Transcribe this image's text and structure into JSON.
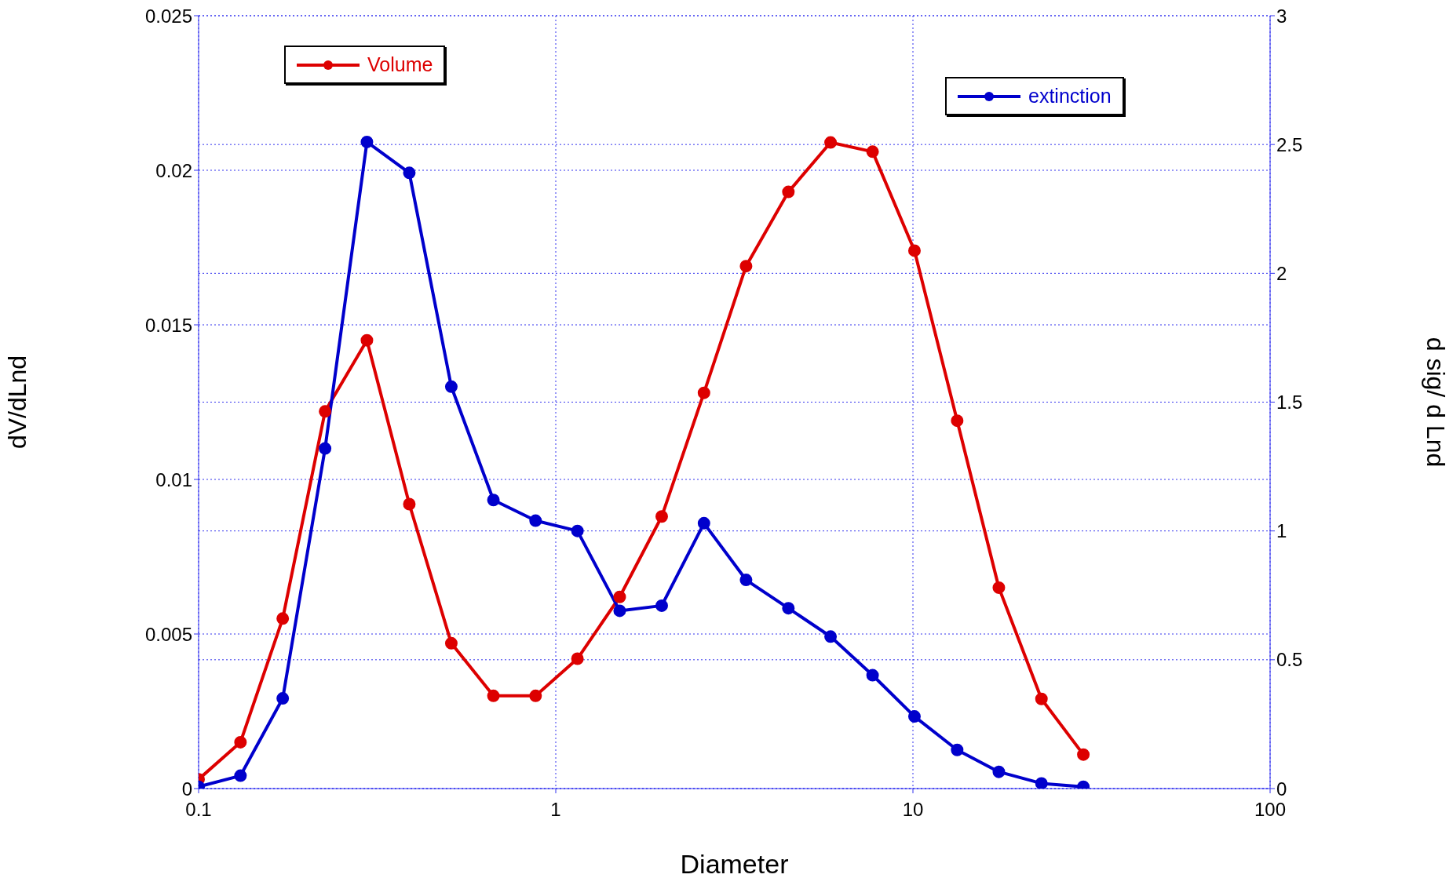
{
  "chart_data": {
    "type": "line",
    "xlabel": "Diameter",
    "ylabel": "dV/dLnd",
    "y2label": "d sig/ d Lnd",
    "x": [
      0.1,
      0.131,
      0.172,
      0.226,
      0.296,
      0.389,
      0.51,
      0.669,
      0.878,
      1.15,
      1.51,
      1.98,
      2.6,
      3.41,
      4.48,
      5.88,
      7.71,
      10.1,
      13.3,
      17.4,
      22.9,
      30.0
    ],
    "series": [
      {
        "name": "Volume",
        "color": "#dd0000",
        "values": [
          0.0003,
          0.0015,
          0.0055,
          0.0122,
          0.0145,
          0.0092,
          0.0047,
          0.003,
          0.003,
          0.0042,
          0.0062,
          0.0088,
          0.0128,
          0.0169,
          0.0193,
          0.0209,
          0.0206,
          0.0174,
          0.0119,
          0.0065,
          0.0029,
          0.0011
        ]
      },
      {
        "name": "extinction",
        "color": "#0000cc",
        "axis": "y2",
        "values": [
          0.007,
          0.05,
          0.35,
          1.32,
          2.51,
          2.39,
          1.56,
          1.12,
          1.04,
          1.0,
          0.69,
          0.71,
          1.03,
          0.81,
          0.7,
          0.59,
          0.44,
          0.28,
          0.15,
          0.065,
          0.02,
          0.007
        ]
      }
    ],
    "log": "x",
    "xlim": [
      0.1,
      100
    ],
    "xticks": [
      0.1,
      1,
      10,
      100
    ],
    "ylim": [
      0,
      0.025
    ],
    "yticks": [
      0,
      0.005,
      0.01,
      0.015,
      0.02,
      0.025
    ],
    "y2lim": [
      0,
      3
    ],
    "y2ticks": [
      0,
      0.5,
      1,
      1.5,
      2,
      2.5,
      3
    ],
    "grid": true,
    "legend": "top",
    "marker": "circle",
    "line_style": "solid"
  }
}
